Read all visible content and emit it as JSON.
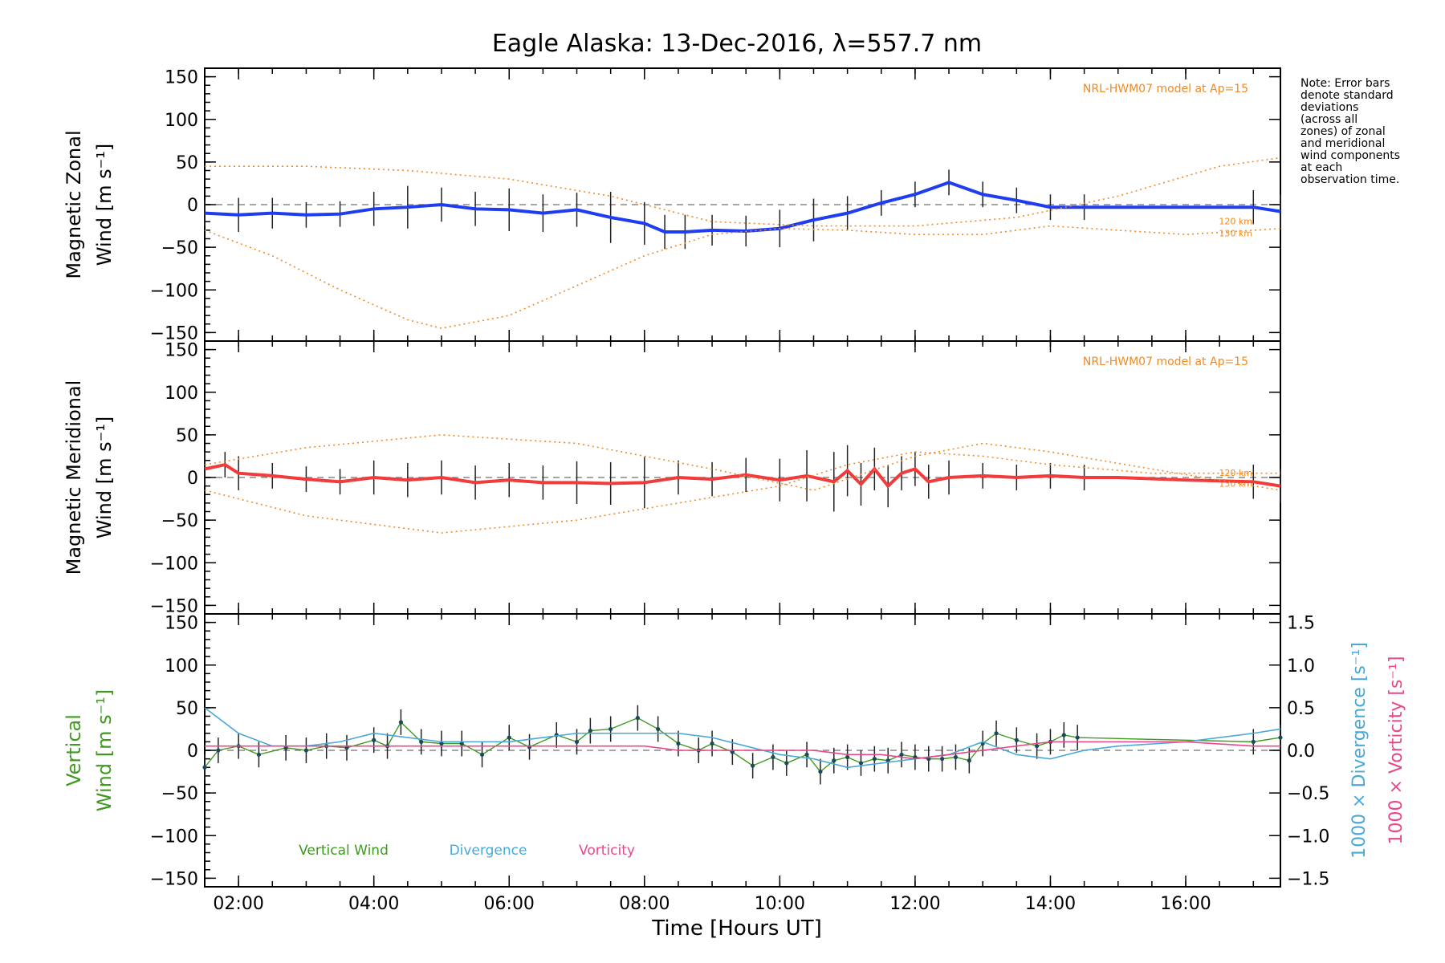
{
  "chart_data": {
    "type": "line",
    "title": "Eagle Alaska: 13-Dec-2016, λ=557.7 nm",
    "xlabel": "Time [Hours UT]",
    "x_unit": "hours UT",
    "xlim": [
      1.5,
      17.4
    ],
    "x_ticks": [
      2,
      4,
      6,
      8,
      10,
      12,
      14,
      16
    ],
    "x_tick_labels": [
      "02:00",
      "04:00",
      "06:00",
      "08:00",
      "10:00",
      "12:00",
      "14:00",
      "16:00"
    ],
    "ylim": [
      -160,
      160
    ],
    "y_ticks": [
      150,
      100,
      50,
      0,
      -50,
      -100,
      -150
    ],
    "y_tick_labels": [
      "150",
      "100",
      "50",
      "0",
      "−50",
      "−100",
      "−150"
    ],
    "note": "Note: Error bars denote standard deviations (across all zones) of zonal and meridional wind components at each observation time.",
    "model_label": "NRL-HWM07 model at Ap=15",
    "model_altitudes": [
      "120 km",
      "130 km"
    ],
    "panels": [
      {
        "id": "zonal",
        "ylabel_line1": "Magnetic Zonal",
        "ylabel_line2": "Wind [m s⁻¹]",
        "series": [
          {
            "name": "Magnetic Zonal Wind",
            "color": "#1f3df0",
            "x": [
              1.5,
              2.0,
              2.5,
              3.0,
              3.5,
              4.0,
              4.5,
              5.0,
              5.5,
              6.0,
              6.5,
              7.0,
              7.5,
              8.0,
              8.3,
              8.6,
              9.0,
              9.5,
              10.0,
              10.5,
              11.0,
              11.5,
              12.0,
              12.5,
              13.0,
              13.5,
              14.0,
              14.5,
              15.0,
              16.0,
              17.0,
              17.4
            ],
            "y": [
              -10,
              -12,
              -10,
              -12,
              -11,
              -5,
              -3,
              0,
              -5,
              -6,
              -10,
              -6,
              -15,
              -22,
              -32,
              -32,
              -30,
              -31,
              -28,
              -18,
              -10,
              2,
              12,
              26,
              12,
              5,
              -3,
              -3,
              -3,
              -3,
              -3,
              -8
            ],
            "error": [
              15,
              20,
              18,
              15,
              15,
              20,
              25,
              20,
              20,
              25,
              22,
              20,
              30,
              25,
              20,
              20,
              18,
              18,
              22,
              25,
              20,
              15,
              15,
              15,
              15,
              15,
              15,
              15,
              0,
              0,
              20,
              20
            ]
          },
          {
            "name": "NRL-HWM07 120 km",
            "color": "#f08a24",
            "style": "dotted",
            "x": [
              1.5,
              3,
              4.5,
              6,
              7.5,
              9,
              10.5,
              12,
              13.5,
              15,
              16.5,
              17.4
            ],
            "y": [
              45,
              45,
              40,
              30,
              10,
              -20,
              -25,
              -25,
              -15,
              10,
              45,
              55
            ]
          },
          {
            "name": "NRL-HWM07 130 km",
            "color": "#f08a24",
            "style": "dotted",
            "x": [
              1.5,
              2.5,
              3.5,
              4.5,
              5.0,
              6.0,
              7.0,
              8.0,
              9.0,
              10.0,
              11.0,
              12.0,
              13.0,
              14.0,
              15.0,
              16.0,
              17.0,
              17.4
            ],
            "y": [
              -30,
              -60,
              -100,
              -135,
              -145,
              -130,
              -95,
              -60,
              -35,
              -28,
              -30,
              -35,
              -35,
              -25,
              -30,
              -35,
              -30,
              -28
            ]
          }
        ]
      },
      {
        "id": "meridional",
        "ylabel_line1": "Magnetic Meridional",
        "ylabel_line2": "Wind [m s⁻¹]",
        "series": [
          {
            "name": "Magnetic Meridional Wind",
            "color": "#f23c3c",
            "x": [
              1.5,
              1.8,
              2.0,
              2.5,
              3.0,
              3.5,
              4.0,
              4.5,
              5.0,
              5.5,
              6.0,
              6.5,
              7.0,
              7.5,
              8.0,
              8.5,
              9.0,
              9.5,
              10.0,
              10.4,
              10.8,
              11.0,
              11.2,
              11.4,
              11.6,
              11.8,
              12.0,
              12.2,
              12.5,
              13.0,
              13.5,
              14.0,
              14.5,
              15.0,
              16.0,
              17.0,
              17.4
            ],
            "y": [
              10,
              15,
              5,
              2,
              -2,
              -5,
              0,
              -3,
              0,
              -6,
              -3,
              -6,
              -6,
              -7,
              -6,
              0,
              -2,
              3,
              -3,
              2,
              -5,
              8,
              -8,
              10,
              -10,
              5,
              10,
              -5,
              0,
              2,
              0,
              2,
              0,
              0,
              -3,
              -5,
              -10
            ],
            "error": [
              20,
              15,
              20,
              15,
              15,
              15,
              20,
              20,
              20,
              20,
              20,
              20,
              25,
              25,
              30,
              20,
              20,
              20,
              25,
              30,
              35,
              30,
              25,
              25,
              25,
              20,
              20,
              20,
              20,
              15,
              15,
              15,
              15,
              0,
              0,
              20,
              20
            ]
          },
          {
            "name": "NRL-HWM07 120 km",
            "color": "#f08a24",
            "style": "dotted",
            "x": [
              1.5,
              3,
              5,
              7,
              9,
              10.5,
              12,
              13,
              14,
              15.5,
              17.4
            ],
            "y": [
              15,
              35,
              50,
              40,
              10,
              -15,
              25,
              40,
              30,
              10,
              -15
            ]
          },
          {
            "name": "NRL-HWM07 130 km",
            "color": "#f08a24",
            "style": "dotted",
            "x": [
              1.5,
              3,
              5,
              7,
              8.5,
              10,
              11,
              12,
              13,
              14,
              15.5,
              17.4
            ],
            "y": [
              -15,
              -45,
              -65,
              -50,
              -30,
              -10,
              15,
              30,
              25,
              15,
              5,
              5
            ]
          }
        ]
      },
      {
        "id": "vertical",
        "ylabel_line1": "Vertical",
        "ylabel_line2": "Wind [m s⁻¹]",
        "right_ylabel_1": "1000 × Divergence [s⁻¹]",
        "right_ylabel_2": "1000 × Vorticity [s⁻¹]",
        "right_ylim": [
          -1.6,
          1.6
        ],
        "right_ticks": [
          1.5,
          1.0,
          0.5,
          0.0,
          -0.5,
          -1.0,
          -1.5
        ],
        "right_tick_labels": [
          "1.5",
          "1.0",
          "0.5",
          "0.0",
          "−0.5",
          "−1.0",
          "−1.5"
        ],
        "legend": [
          "Vertical Wind",
          "Divergence",
          "Vorticity"
        ],
        "series": [
          {
            "name": "Vertical Wind",
            "color": "#3f9a1f",
            "axis": "left",
            "markers": true,
            "x": [
              1.5,
              1.7,
              2.0,
              2.3,
              2.7,
              3.0,
              3.3,
              3.6,
              4.0,
              4.2,
              4.4,
              4.7,
              5.0,
              5.3,
              5.6,
              6.0,
              6.3,
              6.7,
              7.0,
              7.2,
              7.5,
              7.9,
              8.2,
              8.5,
              8.8,
              9.0,
              9.3,
              9.6,
              9.9,
              10.1,
              10.4,
              10.6,
              10.8,
              11.0,
              11.2,
              11.4,
              11.6,
              11.8,
              12.0,
              12.2,
              12.4,
              12.6,
              12.8,
              13.0,
              13.2,
              13.5,
              13.8,
              14.0,
              14.2,
              14.4,
              17.0,
              17.4
            ],
            "y": [
              -20,
              0,
              5,
              -5,
              3,
              0,
              5,
              3,
              12,
              5,
              33,
              10,
              8,
              8,
              -5,
              15,
              4,
              18,
              10,
              23,
              25,
              38,
              25,
              8,
              0,
              8,
              -2,
              -18,
              -8,
              -15,
              -5,
              -25,
              -12,
              -8,
              -15,
              -10,
              -12,
              -5,
              -8,
              -10,
              -10,
              -8,
              -12,
              8,
              20,
              12,
              5,
              10,
              18,
              15,
              10,
              15
            ],
            "error": [
              15,
              15,
              15,
              15,
              15,
              15,
              15,
              15,
              15,
              15,
              15,
              15,
              15,
              15,
              15,
              15,
              15,
              15,
              15,
              15,
              15,
              15,
              15,
              15,
              15,
              15,
              15,
              15,
              15,
              15,
              15,
              15,
              15,
              15,
              15,
              15,
              15,
              15,
              15,
              15,
              15,
              15,
              15,
              15,
              15,
              15,
              15,
              15,
              15,
              15,
              15,
              15
            ]
          },
          {
            "name": "Divergence",
            "color": "#4aa8d8",
            "axis": "right",
            "x": [
              1.5,
              2.0,
              2.5,
              3.0,
              3.5,
              4.0,
              4.5,
              5.0,
              5.5,
              6.0,
              6.5,
              7.0,
              7.5,
              8.0,
              8.5,
              9.0,
              9.5,
              10.0,
              10.5,
              11.0,
              11.5,
              12.0,
              12.5,
              13.0,
              13.5,
              14.0,
              14.5,
              15.0,
              16.0,
              17.0,
              17.4
            ],
            "y": [
              0.5,
              0.2,
              0.05,
              0.05,
              0.1,
              0.2,
              0.15,
              0.1,
              0.1,
              0.1,
              0.15,
              0.2,
              0.2,
              0.2,
              0.2,
              0.15,
              0.05,
              -0.05,
              -0.1,
              -0.2,
              -0.15,
              -0.1,
              -0.05,
              0.1,
              -0.05,
              -0.1,
              0.0,
              0.05,
              0.1,
              0.2,
              0.25
            ]
          },
          {
            "name": "Vorticity",
            "color": "#e8488a",
            "axis": "right",
            "x": [
              1.5,
              2.5,
              3.5,
              4.5,
              5.5,
              6.5,
              7.5,
              8.0,
              8.5,
              9.0,
              9.5,
              10.0,
              10.5,
              11.0,
              11.5,
              12.0,
              12.5,
              13.0,
              13.5,
              14.0,
              15.0,
              16.0,
              17.0,
              17.4
            ],
            "y": [
              0.05,
              0.05,
              0.05,
              0.05,
              0.05,
              0.05,
              0.05,
              0.05,
              0.0,
              0.0,
              0.0,
              0.0,
              0.0,
              -0.05,
              -0.05,
              -0.1,
              -0.05,
              0.0,
              0.05,
              0.1,
              0.1,
              0.1,
              0.05,
              0.05
            ]
          }
        ]
      }
    ]
  }
}
